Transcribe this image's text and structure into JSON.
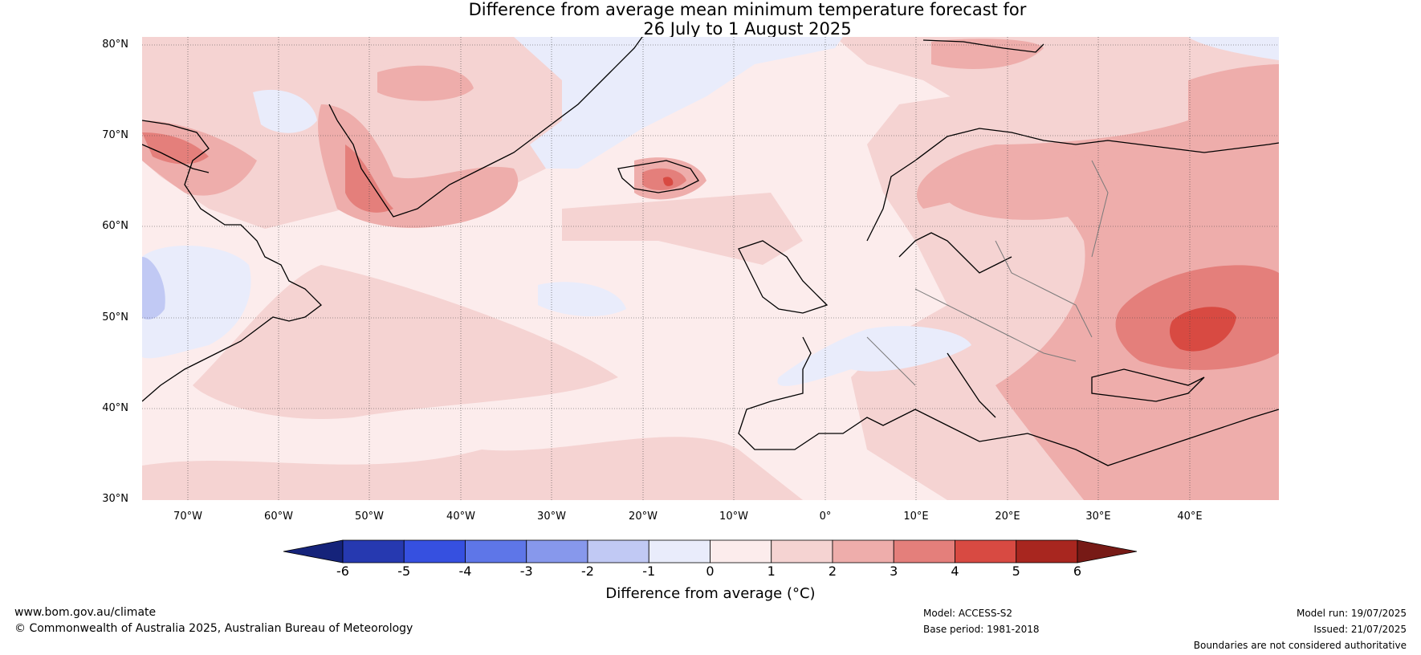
{
  "title": {
    "line1": "Difference from average mean minimum temperature forecast for",
    "line2": "26 July to 1 August 2025"
  },
  "lat_labels": [
    "80°N",
    "70°N",
    "60°N",
    "50°N",
    "40°N",
    "30°N"
  ],
  "lon_labels": [
    "70°W",
    "60°W",
    "50°W",
    "40°W",
    "30°W",
    "20°W",
    "10°W",
    "0°",
    "10°E",
    "20°E",
    "30°E",
    "40°E"
  ],
  "colorbar": {
    "title": "Difference from average (°C)",
    "labels": [
      "-6",
      "-5",
      "-4",
      "-3",
      "-2",
      "-1",
      "0",
      "1",
      "2",
      "3",
      "4",
      "5",
      "6"
    ],
    "colors": [
      "#15237a",
      "#2639b0",
      "#3650e0",
      "#5e76e8",
      "#8798ec",
      "#c1c9f4",
      "#e9ecfb",
      "#fcecec",
      "#f5d3d2",
      "#eeadab",
      "#e47f7b",
      "#d84a42",
      "#a8261f",
      "#771a16"
    ]
  },
  "footer": {
    "url": "www.bom.gov.au/climate",
    "copyright": "© Commonwealth of Australia 2025, Australian Bureau of Meteorology",
    "model": "Model: ACCESS-S2",
    "base_period": "Base period: 1981-2018",
    "model_run": "Model run: 19/07/2025",
    "issued": "Issued: 21/07/2025",
    "disclaimer": "Boundaries are not considered authoritative"
  }
}
